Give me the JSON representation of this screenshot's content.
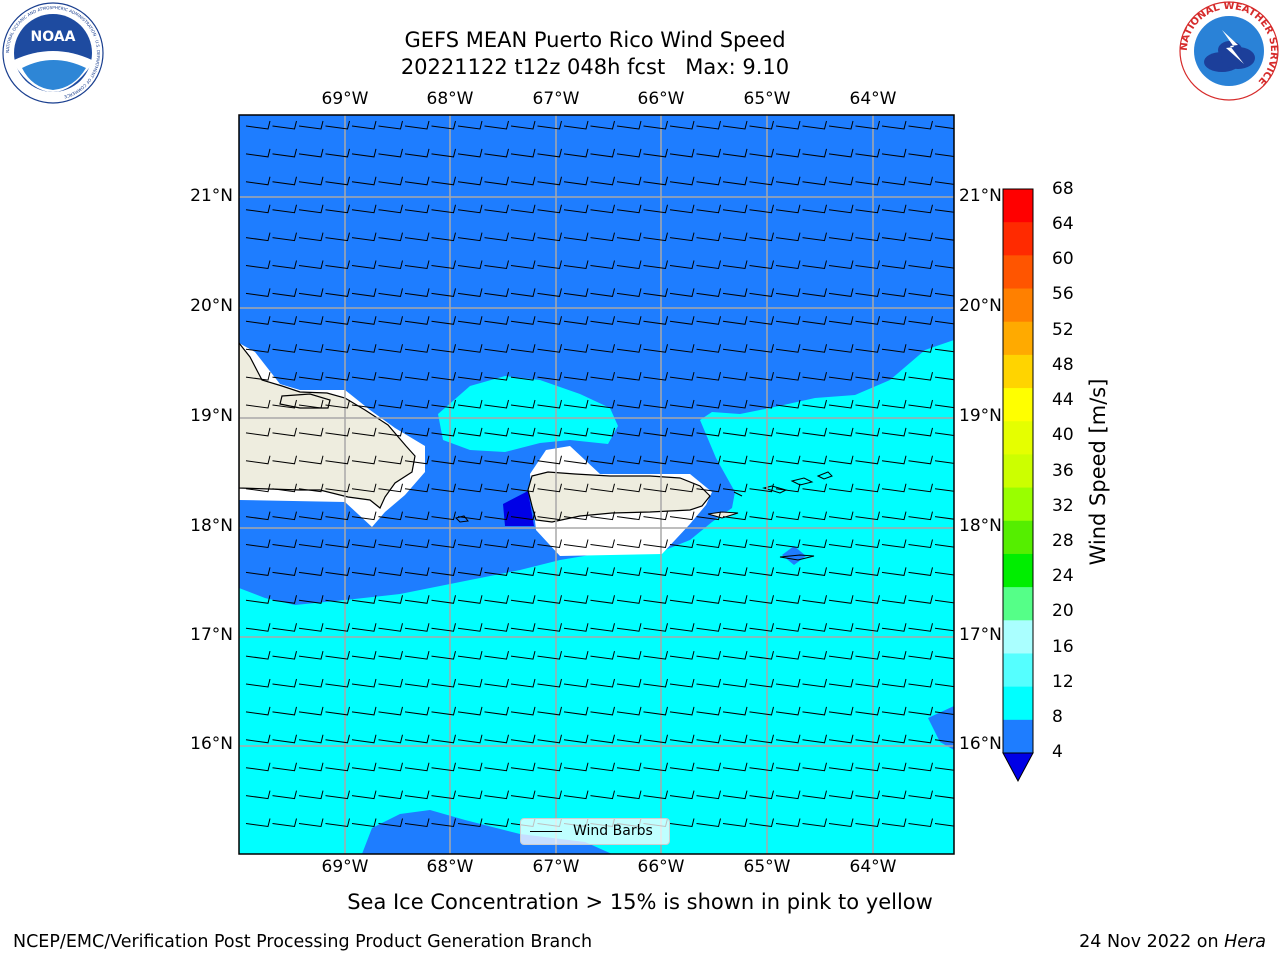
{
  "title": {
    "line1": "GEFS MEAN Puerto Rico Wind Speed",
    "line2": "20221122 t12z 048h fcst   Max: 9.10"
  },
  "map": {
    "lon_labels": [
      "69°W",
      "68°W",
      "67°W",
      "66°W",
      "65°W",
      "64°W"
    ],
    "lat_labels": [
      "21°N",
      "20°N",
      "19°N",
      "18°N",
      "17°N",
      "16°N"
    ],
    "land_color": "#eeeddf",
    "colors": {
      "band_4_8": "#1e7dff",
      "band_8_12": "#00ffff",
      "below_4": "#0000e6"
    },
    "wind_barbs_legend": "Wind Barbs"
  },
  "colorbar": {
    "title": "Wind Speed [m/s]",
    "ticks": [
      "68",
      "64",
      "60",
      "56",
      "52",
      "48",
      "44",
      "40",
      "36",
      "32",
      "28",
      "24",
      "20",
      "16",
      "12",
      "8",
      "4"
    ],
    "colors": [
      "#ff0000",
      "#ff2a00",
      "#ff5500",
      "#ff8000",
      "#ffaa00",
      "#ffd400",
      "#ffff00",
      "#e5ff00",
      "#ccff00",
      "#99ff00",
      "#55ee00",
      "#00ee00",
      "#55ff88",
      "#aaffff",
      "#55ffff",
      "#00ffff",
      "#1e7dff"
    ],
    "extend_color": "#0000e6"
  },
  "subtitle": "Sea Ice Concentration > 15% is shown in pink to yellow",
  "footer": {
    "left": "NCEP/EMC/Verification Post Processing Product Generation Branch",
    "right_prefix": "24 Nov 2022 on ",
    "right_machine": "Hera"
  },
  "logos": {
    "noaa": "NOAA",
    "noaa_ring": "NATIONAL OCEANIC AND ATMOSPHERIC ADMINISTRATION · U.S. DEPARTMENT OF COMMERCE",
    "nws_ring": "NATIONAL WEATHER SERVICE"
  }
}
